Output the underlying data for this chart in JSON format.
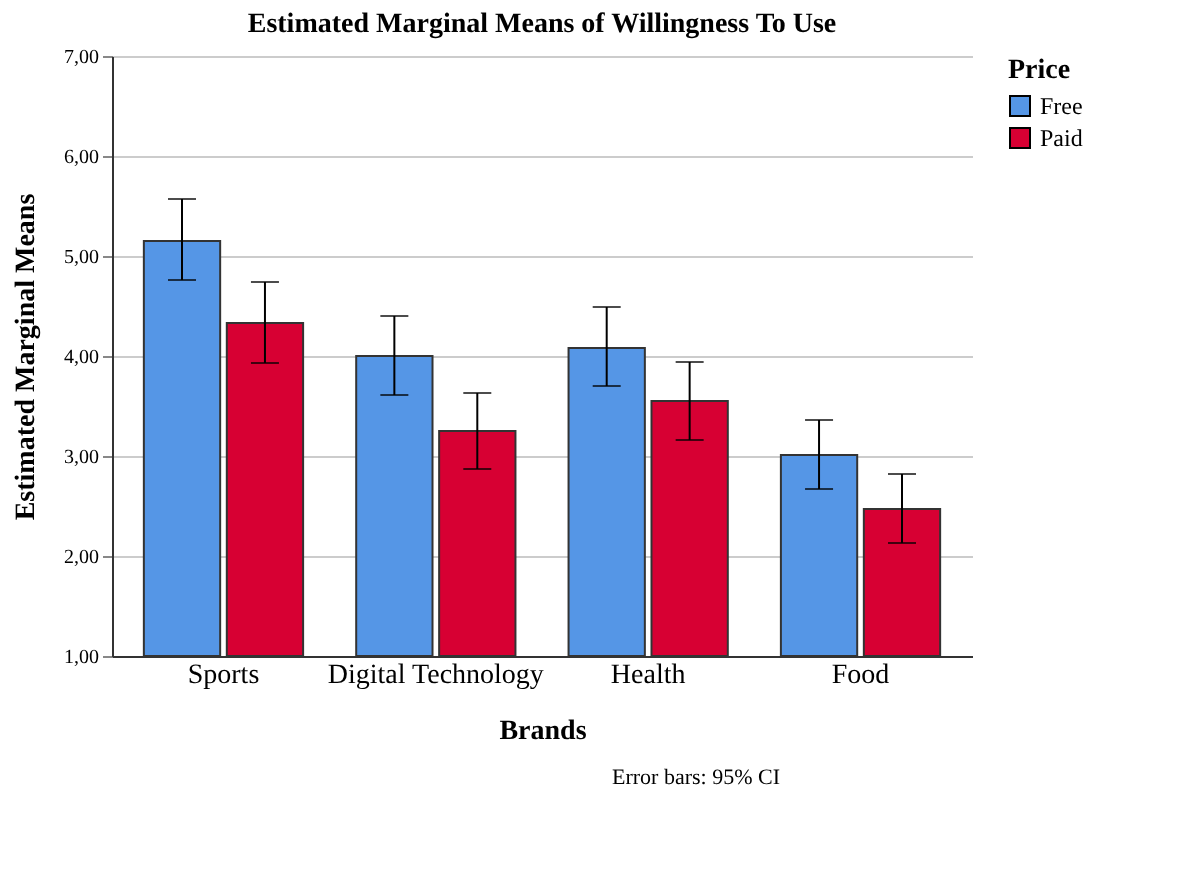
{
  "chart_data": {
    "type": "bar",
    "title": "Estimated Marginal Means of Willingness To Use",
    "xlabel": "Brands",
    "ylabel": "Estimated Marginal Means",
    "legend_title": "Price",
    "categories": [
      "Sports",
      "Digital Technology",
      "Health",
      "Food"
    ],
    "series": [
      {
        "name": "Free",
        "color": "#5596e6",
        "values": [
          5.15,
          4.0,
          4.08,
          3.01
        ],
        "errors": [
          [
            4.76,
            5.57
          ],
          [
            3.61,
            4.4
          ],
          [
            3.7,
            4.49
          ],
          [
            2.67,
            3.36
          ]
        ]
      },
      {
        "name": "Paid",
        "color": "#d70033",
        "values": [
          4.33,
          3.25,
          3.55,
          2.47
        ],
        "errors": [
          [
            3.93,
            4.74
          ],
          [
            2.87,
            3.63
          ],
          [
            3.16,
            3.94
          ],
          [
            2.13,
            2.82
          ]
        ]
      }
    ],
    "ylim": [
      1,
      7
    ],
    "yticks": [
      {
        "value": 1,
        "label": "1,00"
      },
      {
        "value": 2,
        "label": "2,00"
      },
      {
        "value": 3,
        "label": "3,00"
      },
      {
        "value": 4,
        "label": "4,00"
      },
      {
        "value": 5,
        "label": "5,00"
      },
      {
        "value": 6,
        "label": "6,00"
      },
      {
        "value": 7,
        "label": "7,00"
      }
    ],
    "grid": "y",
    "legend": "top right",
    "annotations": [
      "Error bars: 95% CI"
    ]
  }
}
